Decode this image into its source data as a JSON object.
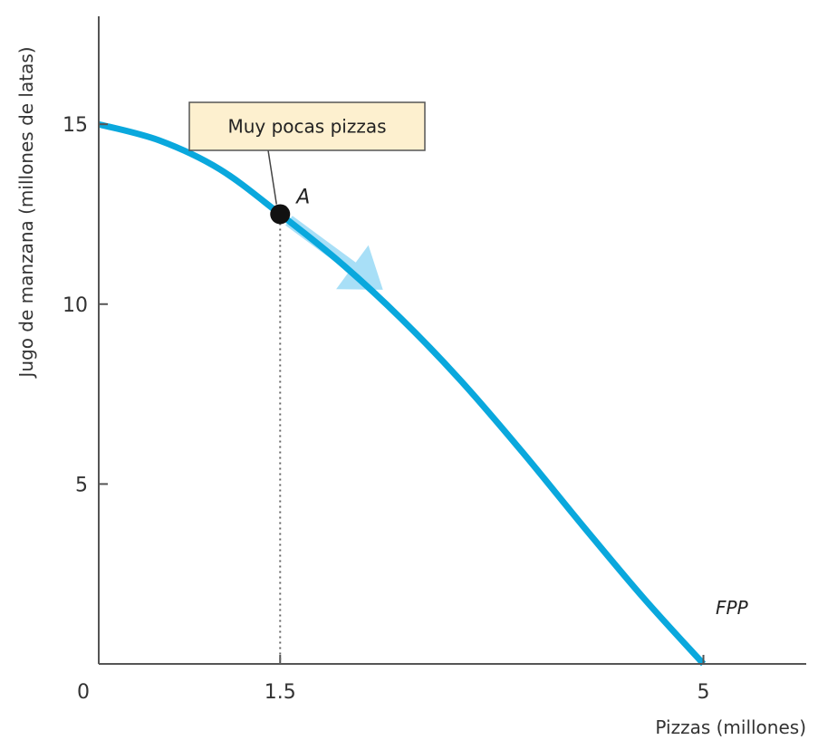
{
  "chart_data": {
    "type": "line",
    "xlabel": "Pizzas (millones)",
    "ylabel": "Jugo de manzana (millones de latas)",
    "xlim": [
      0,
      5.85
    ],
    "ylim": [
      0,
      18
    ],
    "origin_label": "0",
    "x_ticks": [
      {
        "value": 1.5,
        "label": "1.5"
      },
      {
        "value": 5,
        "label": "5"
      }
    ],
    "y_ticks": [
      {
        "value": 5,
        "label": "5"
      },
      {
        "value": 10,
        "label": "10"
      },
      {
        "value": 15,
        "label": "15"
      }
    ],
    "series": [
      {
        "name": "FPP",
        "color": "#0aa8dd",
        "x": [
          0,
          0.5,
          1.0,
          1.5,
          2.0,
          2.5,
          3.0,
          3.5,
          4.0,
          4.5,
          5.0
        ],
        "y": [
          15,
          14.55,
          13.75,
          12.5,
          11.15,
          9.6,
          7.85,
          5.9,
          3.85,
          1.85,
          0
        ]
      }
    ],
    "points": [
      {
        "label": "A",
        "x": 1.5,
        "y": 12.5
      }
    ],
    "annotations": [
      {
        "text": "Muy pocas pizzas",
        "target": "A"
      }
    ],
    "arrow": {
      "from": [
        1.5,
        12.5
      ],
      "to": [
        2.35,
        10.4
      ],
      "color": "#9fdcf6"
    },
    "colors": {
      "axis": "#555555",
      "curve": "#0aa8dd",
      "arrow": "#9fdcf6",
      "callout_fill": "#fdf0cf",
      "callout_border": "#555555",
      "point": "#111111"
    }
  }
}
